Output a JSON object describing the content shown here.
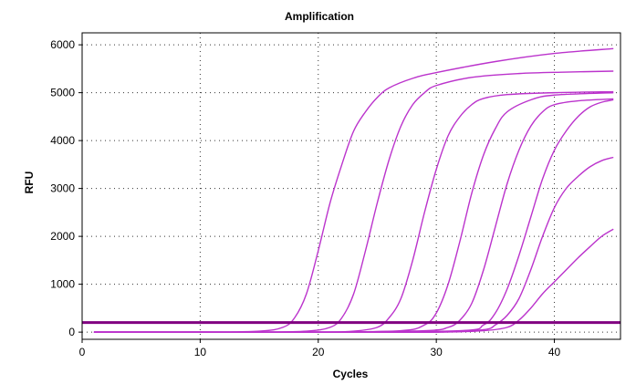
{
  "chart_data": {
    "type": "line",
    "title": "Amplification",
    "xlabel": "Cycles",
    "ylabel": "RFU",
    "xlim": [
      0,
      45.6
    ],
    "ylim": [
      -150,
      6250
    ],
    "x_ticks": [
      0,
      10,
      20,
      30,
      40
    ],
    "y_ticks": [
      0,
      1000,
      2000,
      3000,
      4000,
      5000,
      6000
    ],
    "grid": true,
    "legend": "none",
    "colors": {
      "curves": "#bb33cc",
      "threshold": "#800080",
      "grid": "#333333"
    },
    "threshold": {
      "y": 200
    },
    "series": [
      {
        "values": [
          [
            1,
            0
          ],
          [
            5,
            0
          ],
          [
            10,
            0
          ],
          [
            15,
            20
          ],
          [
            17,
            100
          ],
          [
            18,
            300
          ],
          [
            19,
            800
          ],
          [
            20,
            1700
          ],
          [
            21,
            2700
          ],
          [
            22,
            3500
          ],
          [
            23,
            4200
          ],
          [
            24,
            4600
          ],
          [
            25,
            4900
          ],
          [
            26,
            5100
          ],
          [
            28,
            5300
          ],
          [
            30,
            5420
          ],
          [
            35,
            5650
          ],
          [
            40,
            5820
          ],
          [
            45,
            5920
          ]
        ]
      },
      {
        "values": [
          [
            1,
            0
          ],
          [
            10,
            0
          ],
          [
            15,
            0
          ],
          [
            19,
            20
          ],
          [
            21,
            100
          ],
          [
            22,
            300
          ],
          [
            23,
            800
          ],
          [
            24,
            1700
          ],
          [
            25,
            2700
          ],
          [
            26,
            3600
          ],
          [
            27,
            4300
          ],
          [
            28,
            4750
          ],
          [
            29,
            5000
          ],
          [
            30,
            5150
          ],
          [
            33,
            5320
          ],
          [
            37,
            5400
          ],
          [
            41,
            5430
          ],
          [
            45,
            5450
          ]
        ]
      },
      {
        "values": [
          [
            1,
            0
          ],
          [
            10,
            0
          ],
          [
            20,
            0
          ],
          [
            23,
            20
          ],
          [
            25,
            100
          ],
          [
            26,
            300
          ],
          [
            27,
            700
          ],
          [
            28,
            1500
          ],
          [
            29,
            2500
          ],
          [
            30,
            3400
          ],
          [
            31,
            4100
          ],
          [
            32,
            4500
          ],
          [
            33,
            4750
          ],
          [
            34,
            4880
          ],
          [
            36,
            4960
          ],
          [
            40,
            5000
          ],
          [
            45,
            5020
          ]
        ]
      },
      {
        "values": [
          [
            1,
            0
          ],
          [
            10,
            0
          ],
          [
            20,
            0
          ],
          [
            27,
            30
          ],
          [
            29,
            150
          ],
          [
            30,
            400
          ],
          [
            31,
            1000
          ],
          [
            32,
            1900
          ],
          [
            33,
            2900
          ],
          [
            34,
            3700
          ],
          [
            35,
            4250
          ],
          [
            36,
            4600
          ],
          [
            38,
            4850
          ],
          [
            40,
            4950
          ],
          [
            45,
            5000
          ]
        ]
      },
      {
        "values": [
          [
            1,
            0
          ],
          [
            10,
            0
          ],
          [
            20,
            0
          ],
          [
            29,
            30
          ],
          [
            31,
            100
          ],
          [
            32,
            250
          ],
          [
            33,
            600
          ],
          [
            34,
            1300
          ],
          [
            35,
            2200
          ],
          [
            36,
            3100
          ],
          [
            37,
            3800
          ],
          [
            38,
            4300
          ],
          [
            39,
            4600
          ],
          [
            40,
            4750
          ],
          [
            42,
            4830
          ],
          [
            45,
            4870
          ]
        ]
      },
      {
        "values": [
          [
            1,
            0
          ],
          [
            10,
            0
          ],
          [
            20,
            0
          ],
          [
            32,
            30
          ],
          [
            34,
            150
          ],
          [
            35,
            400
          ],
          [
            36,
            900
          ],
          [
            37,
            1600
          ],
          [
            38,
            2400
          ],
          [
            39,
            3200
          ],
          [
            40,
            3800
          ],
          [
            41,
            4200
          ],
          [
            42,
            4500
          ],
          [
            43,
            4700
          ],
          [
            44,
            4800
          ],
          [
            45,
            4850
          ]
        ]
      },
      {
        "values": [
          [
            1,
            0
          ],
          [
            10,
            0
          ],
          [
            20,
            0
          ],
          [
            30,
            0
          ],
          [
            34,
            50
          ],
          [
            35,
            150
          ],
          [
            36,
            350
          ],
          [
            37,
            700
          ],
          [
            38,
            1300
          ],
          [
            39,
            2000
          ],
          [
            40,
            2600
          ],
          [
            41,
            3000
          ],
          [
            42,
            3250
          ],
          [
            43,
            3450
          ],
          [
            44,
            3580
          ],
          [
            45,
            3650
          ]
        ]
      },
      {
        "values": [
          [
            1,
            0
          ],
          [
            10,
            0
          ],
          [
            20,
            0
          ],
          [
            30,
            0
          ],
          [
            34,
            30
          ],
          [
            36,
            100
          ],
          [
            37,
            250
          ],
          [
            38,
            500
          ],
          [
            39,
            800
          ],
          [
            40,
            1050
          ],
          [
            41,
            1300
          ],
          [
            42,
            1550
          ],
          [
            43,
            1780
          ],
          [
            44,
            2000
          ],
          [
            45,
            2150
          ]
        ]
      }
    ]
  }
}
